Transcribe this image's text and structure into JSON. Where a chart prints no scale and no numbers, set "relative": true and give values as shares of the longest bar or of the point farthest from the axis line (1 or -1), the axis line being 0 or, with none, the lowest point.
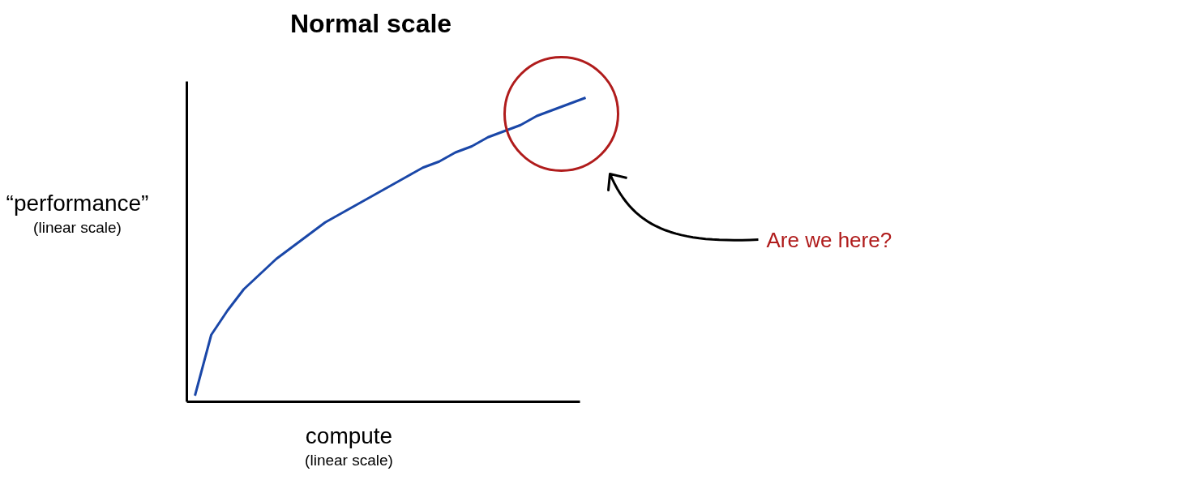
{
  "chart_data": {
    "type": "line",
    "title": "Normal scale",
    "xlabel": "compute\n(linear scale)",
    "ylabel": "“performance”\n(linear scale)",
    "relative": true,
    "categories": [
      null,
      null,
      null,
      null,
      null,
      null,
      null,
      null,
      null,
      null,
      null,
      null,
      null,
      null,
      null,
      null,
      null,
      null,
      null,
      null,
      null,
      null,
      null,
      null,
      null
    ],
    "series": [
      {
        "color": "#1a47a8",
        "values": [
          0.02,
          0.22,
          0.3,
          0.37,
          0.42,
          0.47,
          0.51,
          0.55,
          0.59,
          0.62,
          0.65,
          0.68,
          0.71,
          0.74,
          0.77,
          0.79,
          0.82,
          0.84,
          0.87,
          0.89,
          0.91,
          0.94,
          0.96,
          0.98,
          1.0
        ]
      }
    ],
    "annotations": [
      "Are we here?"
    ],
    "grid": false
  }
}
